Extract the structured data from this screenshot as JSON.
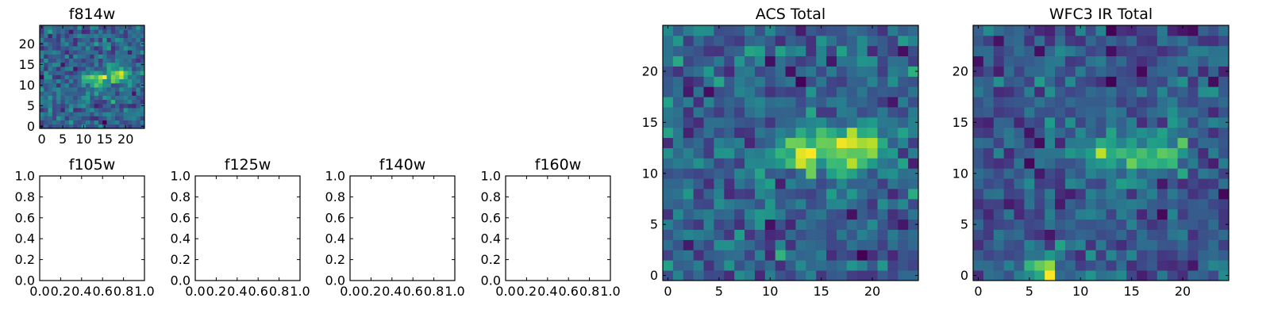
{
  "chart_data": [
    {
      "type": "heatmap",
      "title": "f814w",
      "colormap": "viridis",
      "x_ticks": [
        "0",
        "5",
        "10",
        "15",
        "20"
      ],
      "y_ticks": [
        "0",
        "5",
        "10",
        "15",
        "20"
      ],
      "xlim": [
        -0.5,
        24.5
      ],
      "ylim": [
        -0.5,
        24.5
      ],
      "grid": false,
      "source": {
        "rows": 25,
        "cols": 25,
        "noise": 0.55,
        "seed": 11,
        "features": [
          {
            "x": 13,
            "y": 11.5,
            "sx": 2.2,
            "sy": 1.3,
            "amp": 1.1
          },
          {
            "x": 18.5,
            "y": 12.5,
            "sx": 2.0,
            "sy": 1.5,
            "amp": 1.3
          }
        ]
      }
    },
    {
      "type": "empty",
      "title": "f105w",
      "x_ticks": [
        "0.0",
        "0.2",
        "0.4",
        "0.6",
        "0.8",
        "1.0"
      ],
      "y_ticks": [
        "0.0",
        "0.2",
        "0.4",
        "0.6",
        "0.8",
        "1.0"
      ],
      "xlim": [
        0,
        1
      ],
      "ylim": [
        0,
        1
      ]
    },
    {
      "type": "empty",
      "title": "f125w",
      "x_ticks": [
        "0.0",
        "0.2",
        "0.4",
        "0.6",
        "0.8",
        "1.0"
      ],
      "y_ticks": [
        "0.0",
        "0.2",
        "0.4",
        "0.6",
        "0.8",
        "1.0"
      ],
      "xlim": [
        0,
        1
      ],
      "ylim": [
        0,
        1
      ]
    },
    {
      "type": "empty",
      "title": "f140w",
      "x_ticks": [
        "0.0",
        "0.2",
        "0.4",
        "0.6",
        "0.8",
        "1.0"
      ],
      "y_ticks": [
        "0.0",
        "0.2",
        "0.4",
        "0.6",
        "0.8",
        "1.0"
      ],
      "xlim": [
        0,
        1
      ],
      "ylim": [
        0,
        1
      ]
    },
    {
      "type": "empty",
      "title": "f160w",
      "x_ticks": [
        "0.0",
        "0.2",
        "0.4",
        "0.6",
        "0.8",
        "1.0"
      ],
      "y_ticks": [
        "0.0",
        "0.2",
        "0.4",
        "0.6",
        "0.8",
        "1.0"
      ],
      "xlim": [
        0,
        1
      ],
      "ylim": [
        0,
        1
      ]
    },
    {
      "type": "heatmap",
      "title": "ACS Total",
      "colormap": "viridis",
      "x_ticks": [
        "0",
        "5",
        "10",
        "15",
        "20"
      ],
      "y_ticks": [
        "0",
        "5",
        "10",
        "15",
        "20"
      ],
      "xlim": [
        -0.5,
        24.5
      ],
      "ylim": [
        -0.5,
        24.5
      ],
      "grid": false,
      "source": {
        "rows": 25,
        "cols": 25,
        "noise": 0.6,
        "seed": 23,
        "features": [
          {
            "x": 13.5,
            "y": 12,
            "sx": 2.3,
            "sy": 1.4,
            "amp": 1.2
          },
          {
            "x": 18.5,
            "y": 12.5,
            "sx": 2.0,
            "sy": 1.6,
            "amp": 1.4
          }
        ]
      }
    },
    {
      "type": "heatmap",
      "title": "WFC3 IR Total",
      "colormap": "viridis",
      "x_ticks": [
        "0",
        "5",
        "10",
        "15",
        "20"
      ],
      "y_ticks": [
        "0",
        "5",
        "10",
        "15",
        "20"
      ],
      "xlim": [
        -0.5,
        24.5
      ],
      "ylim": [
        -0.5,
        24.5
      ],
      "grid": false,
      "source": {
        "rows": 25,
        "cols": 25,
        "noise": 0.45,
        "seed": 47,
        "bias": 0.35,
        "features": [
          {
            "x": 13,
            "y": 12,
            "sx": 2.4,
            "sy": 1.2,
            "amp": 0.9
          },
          {
            "x": 18.5,
            "y": 12,
            "sx": 1.6,
            "sy": 1.2,
            "amp": 0.9
          },
          {
            "x": 6.5,
            "y": 0.5,
            "sx": 1.2,
            "sy": 1.0,
            "amp": 1.2
          }
        ]
      }
    }
  ],
  "colors": {
    "viridis": [
      "#440154",
      "#482878",
      "#3e4989",
      "#31688e",
      "#26828e",
      "#1f9e89",
      "#35b779",
      "#6ece58",
      "#b5de2b",
      "#fde725"
    ]
  }
}
